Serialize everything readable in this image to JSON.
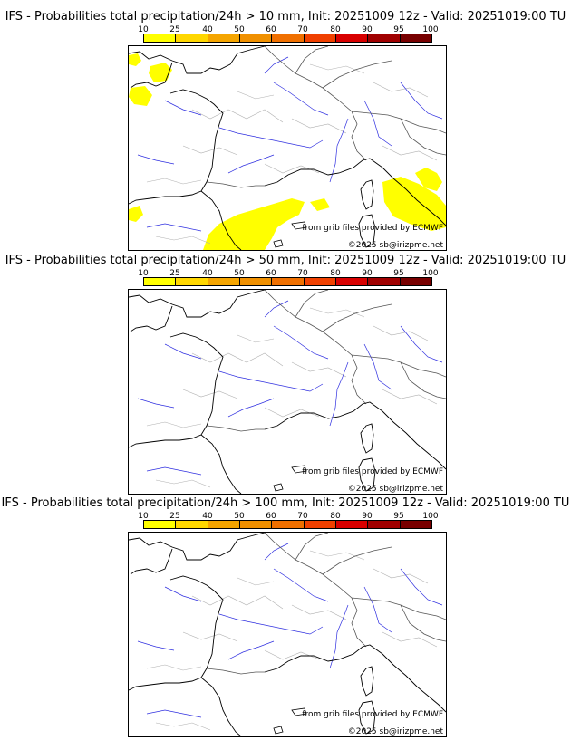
{
  "scale": {
    "ticks": [
      "10",
      "25",
      "40",
      "50",
      "60",
      "70",
      "80",
      "90",
      "95",
      "100"
    ],
    "colors": [
      "#ffff00",
      "#ffd700",
      "#f5a500",
      "#f09000",
      "#f07000",
      "#f04000",
      "#d80000",
      "#a00000",
      "#780000"
    ]
  },
  "panels": [
    {
      "title": "IFS - Probabilities total precipitation/24h > 10 mm, Init: 20251009 12z - Valid: 20251019:00 TU",
      "credit": "from grib files provided by ECMWF",
      "copyright": "©2025 sb@irizpme.net",
      "has_precip": true
    },
    {
      "title": "IFS - Probabilities total precipitation/24h > 50 mm, Init: 20251009 12z - Valid: 20251019:00 TU",
      "credit": "from grib files provided by ECMWF",
      "copyright": "©2025 sb@irizpme.net",
      "has_precip": false
    },
    {
      "title": "IFS - Probabilities total precipitation/24h > 100 mm, Init: 20251009 12z - Valid: 20251019:00 TU",
      "credit": "from grib files provided by ECMWF",
      "copyright": "©2025 sb@irizpme.net",
      "has_precip": false
    }
  ]
}
